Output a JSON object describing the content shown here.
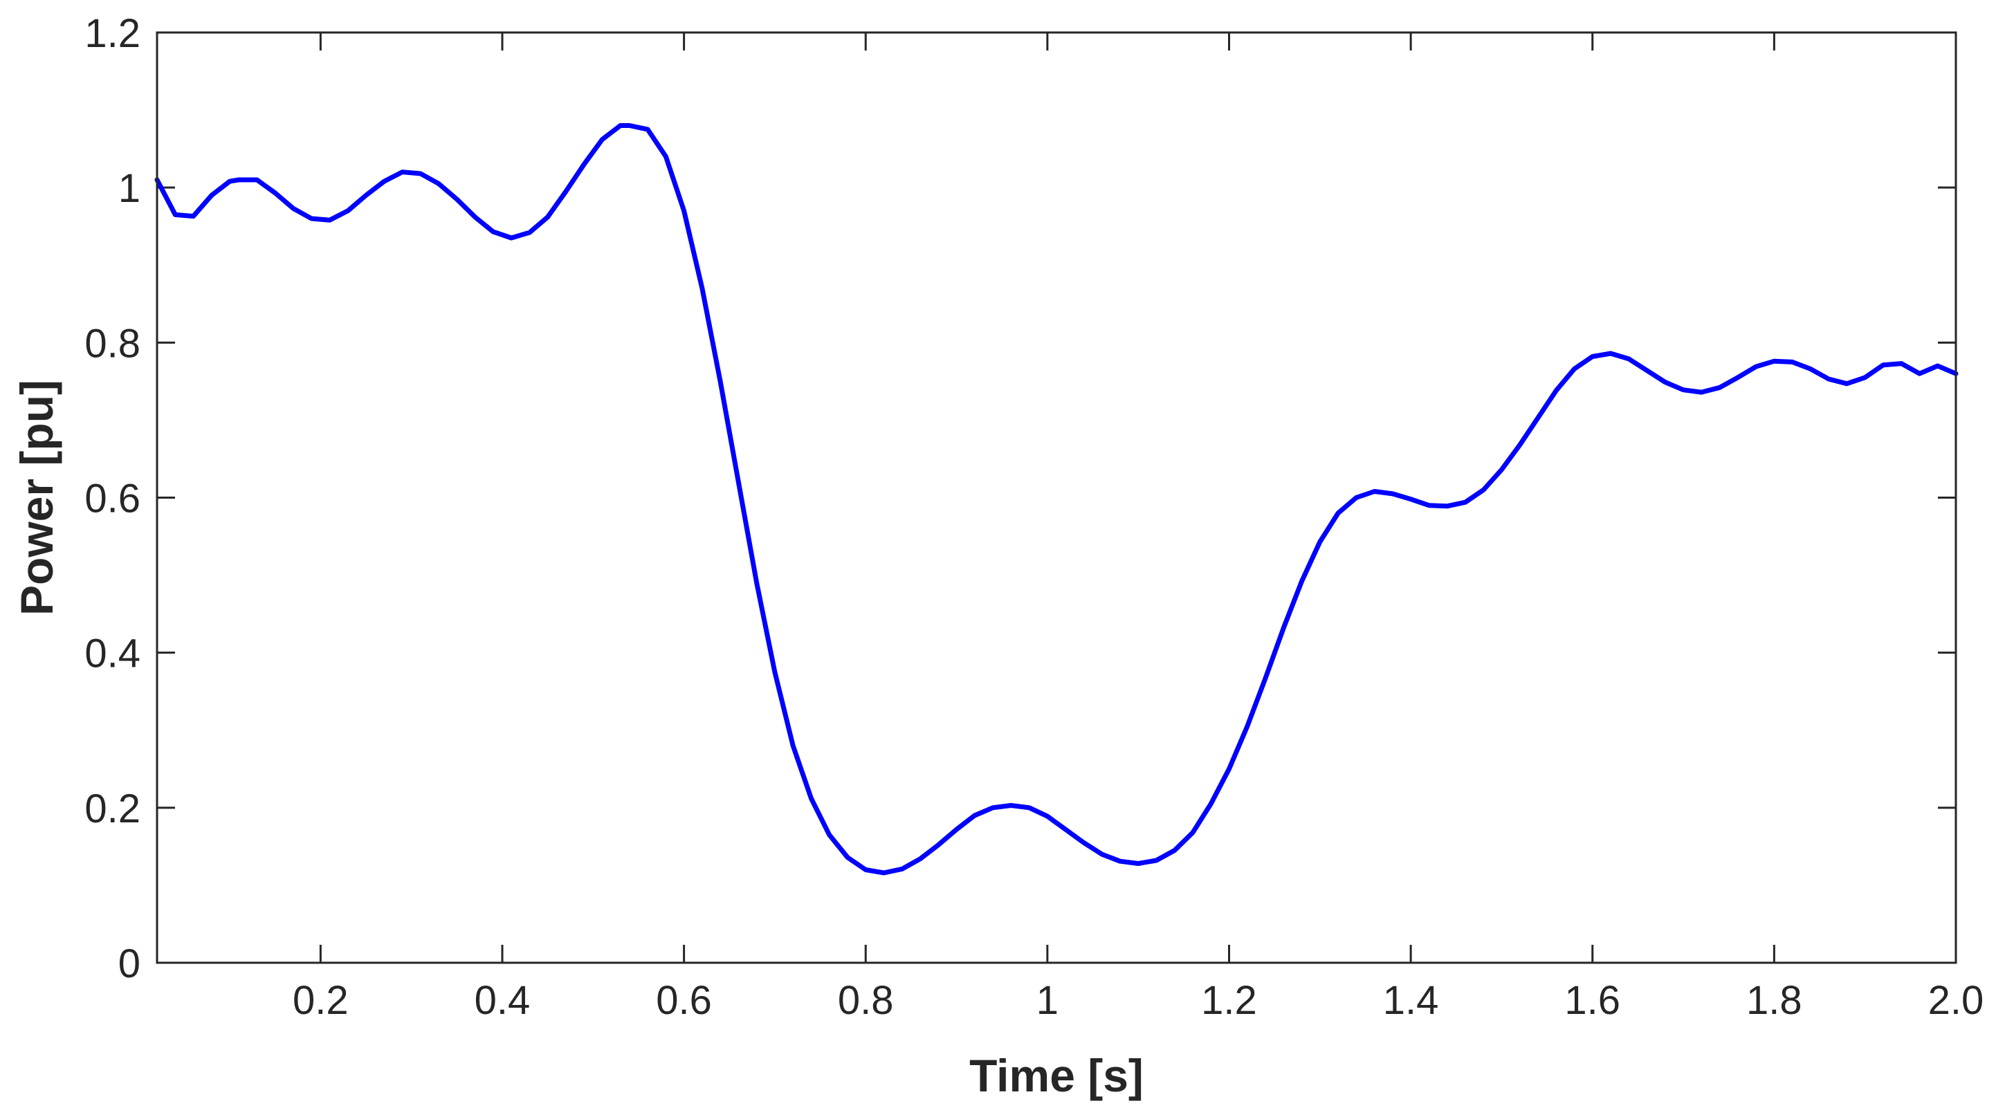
{
  "chart_data": {
    "type": "line",
    "title": "",
    "xlabel": "Time [s]",
    "ylabel": "Power [pu]",
    "xlim": [
      0.02,
      2.0
    ],
    "ylim": [
      0,
      1.2
    ],
    "x_ticks": [
      0.2,
      0.4,
      0.6,
      0.8,
      1.0,
      1.2,
      1.4,
      1.6,
      1.8,
      2.0
    ],
    "x_tick_labels": [
      "0.2",
      "0.4",
      "0.6",
      "0.8",
      "1",
      "1.2",
      "1.4",
      "1.6",
      "1.8",
      "2.0"
    ],
    "y_ticks": [
      0,
      0.2,
      0.4,
      0.6,
      0.8,
      1.0,
      1.2
    ],
    "y_tick_labels": [
      "0",
      "0.2",
      "0.4",
      "0.6",
      "0.8",
      "1",
      "1.2"
    ],
    "grid": false,
    "line_color": "#0000ff",
    "axis_color": "#262626",
    "series": [
      {
        "x": [
          0.02,
          0.04,
          0.06,
          0.08,
          0.1,
          0.11,
          0.13,
          0.15,
          0.17,
          0.19,
          0.21,
          0.23,
          0.25,
          0.27,
          0.29,
          0.31,
          0.33,
          0.35,
          0.37,
          0.39,
          0.41,
          0.43,
          0.45,
          0.47,
          0.49,
          0.51,
          0.53,
          0.54,
          0.56,
          0.58,
          0.6,
          0.62,
          0.64,
          0.66,
          0.68,
          0.7,
          0.72,
          0.74,
          0.76,
          0.78,
          0.8,
          0.82,
          0.84,
          0.86,
          0.88,
          0.9,
          0.92,
          0.94,
          0.96,
          0.98,
          1.0,
          1.02,
          1.04,
          1.06,
          1.08,
          1.1,
          1.12,
          1.14,
          1.16,
          1.18,
          1.2,
          1.22,
          1.24,
          1.26,
          1.28,
          1.3,
          1.32,
          1.34,
          1.36,
          1.38,
          1.4,
          1.42,
          1.44,
          1.46,
          1.48,
          1.5,
          1.52,
          1.54,
          1.56,
          1.58,
          1.6,
          1.62,
          1.64,
          1.66,
          1.68,
          1.7,
          1.72,
          1.74,
          1.76,
          1.78,
          1.8,
          1.82,
          1.84,
          1.86,
          1.88,
          1.9,
          1.92,
          1.94,
          1.96,
          1.98,
          2.0
        ],
        "y": [
          1.01,
          0.965,
          0.963,
          0.99,
          1.008,
          1.01,
          1.01,
          0.993,
          0.973,
          0.96,
          0.958,
          0.97,
          0.99,
          1.008,
          1.02,
          1.018,
          1.005,
          0.985,
          0.962,
          0.943,
          0.935,
          0.942,
          0.962,
          0.995,
          1.03,
          1.062,
          1.08,
          1.08,
          1.075,
          1.04,
          0.97,
          0.87,
          0.75,
          0.62,
          0.49,
          0.375,
          0.28,
          0.212,
          0.165,
          0.136,
          0.12,
          0.116,
          0.121,
          0.134,
          0.152,
          0.172,
          0.19,
          0.2,
          0.203,
          0.2,
          0.189,
          0.172,
          0.155,
          0.14,
          0.131,
          0.128,
          0.132,
          0.145,
          0.168,
          0.205,
          0.25,
          0.305,
          0.367,
          0.432,
          0.492,
          0.543,
          0.58,
          0.6,
          0.608,
          0.605,
          0.598,
          0.59,
          0.589,
          0.594,
          0.61,
          0.636,
          0.668,
          0.703,
          0.738,
          0.766,
          0.782,
          0.786,
          0.779,
          0.764,
          0.749,
          0.739,
          0.736,
          0.742,
          0.755,
          0.769,
          0.776,
          0.775,
          0.766,
          0.753,
          0.747,
          0.755,
          0.771,
          0.773,
          0.76,
          0.77,
          0.76
        ]
      }
    ]
  }
}
